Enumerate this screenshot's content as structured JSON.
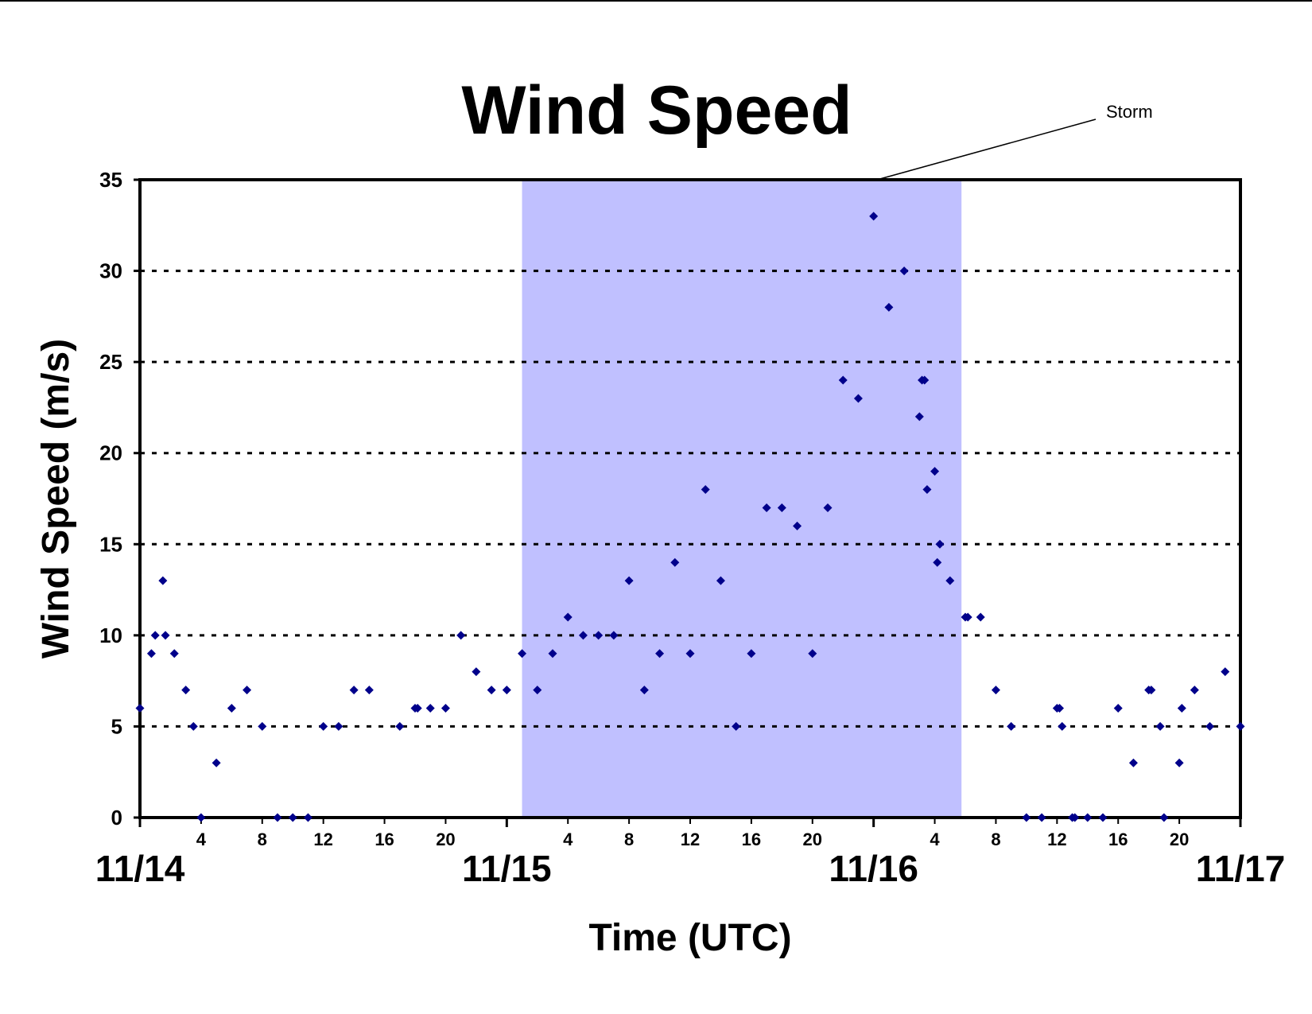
{
  "chart_data": {
    "type": "scatter",
    "title": "Wind Speed",
    "xlabel": "Time (UTC)",
    "ylabel": "Wind Speed (m/s)",
    "ylim": [
      0,
      35
    ],
    "xlim": [
      "11/14 00:00",
      "11/17 00:00"
    ],
    "yticks": [
      "0",
      "5",
      "10",
      "15",
      "20",
      "25",
      "30",
      "35"
    ],
    "day_labels": [
      "11/14",
      "11/15",
      "11/16",
      "11/17"
    ],
    "hour_tick_labels": [
      [
        "4",
        "8",
        "12",
        "16",
        "20"
      ],
      [
        "4",
        "8",
        "12",
        "16",
        "20"
      ],
      [
        "4",
        "8",
        "12",
        "16",
        "20"
      ]
    ],
    "grid": "horizontal dotted",
    "legend": "none",
    "annotation": {
      "text": "Storm",
      "span": [
        "11/15 01:00",
        "11/16 05:45"
      ]
    },
    "colors": {
      "marker": "#00008b",
      "storm_band": "#c0c0ff",
      "gridline": "#000000"
    },
    "points": [
      [
        "11/14 00:00",
        6
      ],
      [
        "11/14 00:45",
        9
      ],
      [
        "11/14 01:00",
        10
      ],
      [
        "11/14 01:30",
        13
      ],
      [
        "11/14 01:40",
        10
      ],
      [
        "11/14 02:15",
        9
      ],
      [
        "11/14 03:00",
        7
      ],
      [
        "11/14 03:30",
        5
      ],
      [
        "11/14 04:00",
        0
      ],
      [
        "11/14 05:00",
        3
      ],
      [
        "11/14 06:00",
        6
      ],
      [
        "11/14 07:00",
        7
      ],
      [
        "11/14 08:00",
        5
      ],
      [
        "11/14 09:00",
        0
      ],
      [
        "11/14 10:00",
        0
      ],
      [
        "11/14 11:00",
        0
      ],
      [
        "11/14 12:00",
        5
      ],
      [
        "11/14 13:00",
        5
      ],
      [
        "11/14 14:00",
        7
      ],
      [
        "11/14 15:00",
        7
      ],
      [
        "11/14 17:00",
        5
      ],
      [
        "11/14 18:00",
        6
      ],
      [
        "11/14 18:10",
        6
      ],
      [
        "11/14 19:00",
        6
      ],
      [
        "11/14 20:00",
        6
      ],
      [
        "11/14 21:00",
        10
      ],
      [
        "11/14 22:00",
        8
      ],
      [
        "11/14 23:00",
        7
      ],
      [
        "11/15 00:00",
        7
      ],
      [
        "11/15 01:00",
        9
      ],
      [
        "11/15 02:00",
        7
      ],
      [
        "11/15 03:00",
        9
      ],
      [
        "11/15 04:00",
        11
      ],
      [
        "11/15 05:00",
        10
      ],
      [
        "11/15 06:00",
        10
      ],
      [
        "11/15 07:00",
        10
      ],
      [
        "11/15 08:00",
        13
      ],
      [
        "11/15 09:00",
        7
      ],
      [
        "11/15 10:00",
        9
      ],
      [
        "11/15 11:00",
        14
      ],
      [
        "11/15 12:00",
        9
      ],
      [
        "11/15 13:00",
        18
      ],
      [
        "11/15 14:00",
        13
      ],
      [
        "11/15 15:00",
        5
      ],
      [
        "11/15 16:00",
        9
      ],
      [
        "11/15 17:00",
        17
      ],
      [
        "11/15 18:00",
        17
      ],
      [
        "11/15 19:00",
        16
      ],
      [
        "11/15 20:00",
        9
      ],
      [
        "11/15 21:00",
        17
      ],
      [
        "11/15 22:00",
        24
      ],
      [
        "11/15 23:00",
        23
      ],
      [
        "11/16 00:00",
        33
      ],
      [
        "11/16 01:00",
        28
      ],
      [
        "11/16 02:00",
        30
      ],
      [
        "11/16 03:00",
        22
      ],
      [
        "11/16 03:10",
        24
      ],
      [
        "11/16 03:20",
        24
      ],
      [
        "11/16 03:30",
        18
      ],
      [
        "11/16 04:00",
        19
      ],
      [
        "11/16 04:10",
        14
      ],
      [
        "11/16 04:20",
        15
      ],
      [
        "11/16 05:00",
        13
      ],
      [
        "11/16 06:00",
        11
      ],
      [
        "11/16 06:10",
        11
      ],
      [
        "11/16 07:00",
        11
      ],
      [
        "11/16 08:00",
        7
      ],
      [
        "11/16 09:00",
        5
      ],
      [
        "11/16 10:00",
        0
      ],
      [
        "11/16 11:00",
        0
      ],
      [
        "11/16 12:00",
        6
      ],
      [
        "11/16 12:10",
        6
      ],
      [
        "11/16 12:20",
        5
      ],
      [
        "11/16 13:00",
        0
      ],
      [
        "11/16 13:10",
        0
      ],
      [
        "11/16 14:00",
        0
      ],
      [
        "11/16 15:00",
        0
      ],
      [
        "11/16 16:00",
        6
      ],
      [
        "11/16 17:00",
        3
      ],
      [
        "11/16 18:00",
        7
      ],
      [
        "11/16 18:10",
        7
      ],
      [
        "11/16 18:45",
        5
      ],
      [
        "11/16 19:00",
        0
      ],
      [
        "11/16 20:00",
        3
      ],
      [
        "11/16 20:10",
        6
      ],
      [
        "11/16 21:00",
        7
      ],
      [
        "11/16 22:00",
        5
      ],
      [
        "11/16 23:00",
        8
      ],
      [
        "11/17 00:00",
        5
      ]
    ]
  }
}
